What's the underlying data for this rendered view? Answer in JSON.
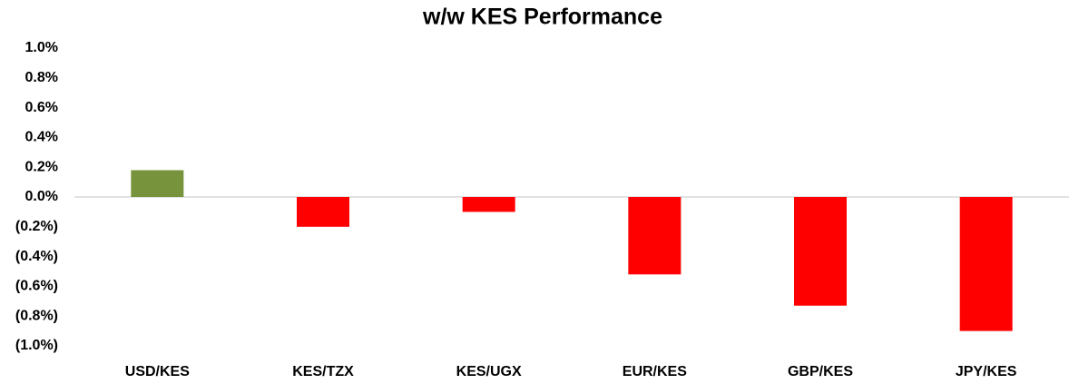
{
  "chart_data": {
    "type": "bar",
    "title": "w/w KES Performance",
    "categories": [
      "USD/KES",
      "KES/TZX",
      "KES/UGX",
      "EUR/KES",
      "GBP/KES",
      "JPY/KES"
    ],
    "values": [
      0.18,
      -0.2,
      -0.1,
      -0.52,
      -0.73,
      -0.9
    ],
    "colors": [
      "#77933c",
      "#ff0000",
      "#ff0000",
      "#ff0000",
      "#ff0000",
      "#ff0000"
    ],
    "ylim": [
      -1.0,
      1.0
    ],
    "yticks": [
      {
        "value": 1.0,
        "label": "1.0%"
      },
      {
        "value": 0.8,
        "label": "0.8%"
      },
      {
        "value": 0.6,
        "label": "0.6%"
      },
      {
        "value": 0.4,
        "label": "0.4%"
      },
      {
        "value": 0.2,
        "label": "0.2%"
      },
      {
        "value": 0.0,
        "label": "0.0%"
      },
      {
        "value": -0.2,
        "label": "(0.2%)"
      },
      {
        "value": -0.4,
        "label": "(0.4%)"
      },
      {
        "value": -0.6,
        "label": "(0.6%)"
      },
      {
        "value": -0.8,
        "label": "(0.8%)"
      },
      {
        "value": -1.0,
        "label": "(1.0%)"
      }
    ],
    "grid": false
  }
}
